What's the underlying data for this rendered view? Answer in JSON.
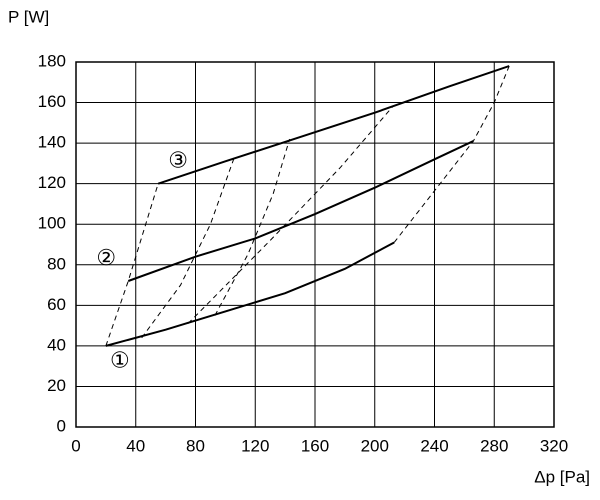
{
  "chart_data": {
    "type": "line",
    "y_label": "P [W]",
    "x_label": "Δp [Pa]",
    "xlim": [
      0,
      320
    ],
    "xticks": [
      0,
      40,
      80,
      120,
      160,
      200,
      240,
      280,
      320
    ],
    "ylim": [
      0,
      180
    ],
    "yticks": [
      0,
      20,
      40,
      60,
      80,
      100,
      120,
      140,
      160,
      180
    ],
    "grid": true,
    "series": [
      {
        "name": "①",
        "color": "#000000",
        "style": "solid",
        "x": [
          20,
          60,
          100,
          140,
          180,
          213
        ],
        "values": [
          40,
          48,
          57,
          66,
          78,
          91
        ]
      },
      {
        "name": "②",
        "color": "#000000",
        "style": "solid",
        "x": [
          35,
          80,
          120,
          160,
          200,
          240,
          266
        ],
        "values": [
          72,
          84,
          93,
          105,
          118,
          132,
          141
        ]
      },
      {
        "name": "③",
        "color": "#000000",
        "style": "solid",
        "x": [
          55,
          100,
          150,
          200,
          250,
          290
        ],
        "values": [
          120,
          131,
          143,
          155,
          168,
          178
        ]
      },
      {
        "color": "#000000",
        "style": "dashed",
        "x": [
          20,
          35,
          55
        ],
        "values": [
          40,
          72,
          120
        ]
      },
      {
        "color": "#000000",
        "style": "dashed",
        "x": [
          44,
          70,
          90,
          106
        ],
        "values": [
          44,
          70,
          100,
          133
        ]
      },
      {
        "color": "#000000",
        "style": "dashed",
        "x": [
          93,
          115,
          132,
          143
        ],
        "values": [
          55,
          85,
          115,
          142
        ]
      },
      {
        "color": "#000000",
        "style": "dashed",
        "x": [
          75,
          130,
          177,
          212
        ],
        "values": [
          51,
          92,
          128,
          158
        ]
      },
      {
        "color": "#000000",
        "style": "dashed",
        "x": [
          213,
          266,
          280,
          290
        ],
        "values": [
          91,
          141,
          160,
          178
        ]
      }
    ]
  }
}
